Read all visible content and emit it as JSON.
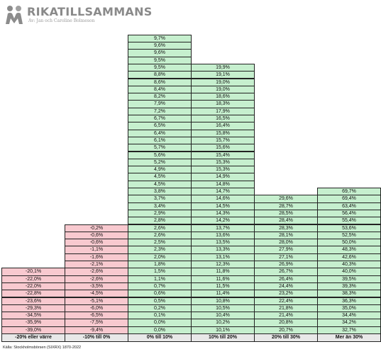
{
  "brand": {
    "title": "RIKATILLSAMMANS",
    "subtitle": "Av: Jan och Caroline Bolmeson"
  },
  "source": "Källa: Stockholmsbörsen (SIXRX) 1870-2022",
  "chart_data": {
    "type": "table",
    "columns": [
      {
        "label": "-20% eller värre",
        "sign": "negative",
        "values": [
          "-20,1%",
          "-22,0%",
          "-22,0%",
          "-22,8%",
          "-23,6%",
          "-29,3%",
          "-34,5%",
          "-35,9%",
          "-39,0%"
        ]
      },
      {
        "label": "-10% till 0%",
        "sign": "negative",
        "values": [
          "-0,2%",
          "-0,6%",
          "-0,6%",
          "-1,1%",
          "-1,6%",
          "-2,1%",
          "-2,6%",
          "-2,6%",
          "-3,5%",
          "-4,5%",
          "-5,1%",
          "-6,0%",
          "-6,5%",
          "-7,5%",
          "-9,4%"
        ]
      },
      {
        "label": "0% till 10%",
        "sign": "positive",
        "values": [
          "9,7%",
          "9,6%",
          "9,6%",
          "9,5%",
          "9,5%",
          "8,8%",
          "8,6%",
          "8,4%",
          "8,2%",
          "7,9%",
          "7,2%",
          "6,7%",
          "6,5%",
          "6,4%",
          "6,1%",
          "5,7%",
          "5,6%",
          "5,2%",
          "4,9%",
          "4,5%",
          "4,5%",
          "3,8%",
          "3,7%",
          "3,4%",
          "2,9%",
          "2,8%",
          "2,6%",
          "2,6%",
          "2,5%",
          "2,3%",
          "2,0%",
          "1,8%",
          "1,5%",
          "1,1%",
          "0,7%",
          "0,6%",
          "0,5%",
          "0,2%",
          "0,1%",
          "0,0%",
          "0,0%"
        ]
      },
      {
        "label": "10% till 20%",
        "sign": "positive",
        "values": [
          "19,9%",
          "19,1%",
          "19,0%",
          "19,0%",
          "18,6%",
          "18,3%",
          "17,9%",
          "16,5%",
          "16,4%",
          "15,8%",
          "15,7%",
          "15,6%",
          "15,4%",
          "15,3%",
          "15,3%",
          "14,9%",
          "14,8%",
          "14,7%",
          "14,6%",
          "14,5%",
          "14,3%",
          "14,2%",
          "13,7%",
          "13,6%",
          "13,5%",
          "13,3%",
          "13,1%",
          "12,3%",
          "11,8%",
          "11,6%",
          "11,5%",
          "11,4%",
          "10,8%",
          "10,5%",
          "10,4%",
          "10,2%",
          "10,1%"
        ]
      },
      {
        "label": "20% till 30%",
        "sign": "positive",
        "values": [
          "29,6%",
          "28,7%",
          "28,5%",
          "28,4%",
          "28,3%",
          "28,1%",
          "28,0%",
          "27,9%",
          "27,1%",
          "26,9%",
          "26,7%",
          "26,4%",
          "24,4%",
          "23,2%",
          "22,4%",
          "21,8%",
          "21,4%",
          "20,8%",
          "20,7%"
        ]
      },
      {
        "label": "Mer än 30%",
        "sign": "positive",
        "values": [
          "69,7%",
          "69,4%",
          "63,4%",
          "56,4%",
          "55,4%",
          "53,6%",
          "52,5%",
          "50,0%",
          "48,3%",
          "42,6%",
          "40,3%",
          "40,0%",
          "39,5%",
          "39,3%",
          "38,3%",
          "36,3%",
          "35,0%",
          "34,4%",
          "34,2%",
          "32,7%"
        ]
      }
    ],
    "colors": {
      "positive": "#c6efce",
      "negative": "#f8c9cf",
      "header": "#e8e8e8",
      "border": "#222222"
    }
  }
}
